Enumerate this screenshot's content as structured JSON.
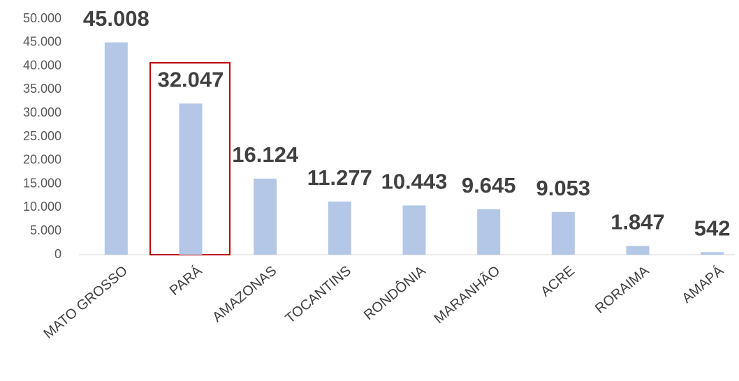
{
  "chart_data": {
    "type": "bar",
    "categories": [
      "MATO GROSSO",
      "PARÁ",
      "AMAZONAS",
      "TOCANTINS",
      "RONDÔNIA",
      "MARANHÃO",
      "ACRE",
      "RORAIMA",
      "AMAPÁ"
    ],
    "values": [
      45008,
      32047,
      16124,
      11277,
      10443,
      9645,
      9053,
      1847,
      542
    ],
    "value_labels": [
      "45.008",
      "32.047",
      "16.124",
      "11.277",
      "10.443",
      "9.645",
      "9.053",
      "1.847",
      "542"
    ],
    "color": "#b4c7e7",
    "ylim": [
      0,
      50000
    ],
    "yticks": [
      0,
      {
        "value": 5000,
        "label": "5.000"
      },
      {
        "value": 10000,
        "label": "10.000"
      },
      {
        "value": 15000,
        "label": "15.000"
      },
      {
        "value": 20000,
        "label": "20.000"
      },
      {
        "value": 25000,
        "label": "25.000"
      },
      {
        "value": 30000,
        "label": "30.000"
      },
      {
        "value": 35000,
        "label": "35.000"
      },
      {
        "value": 40000,
        "label": "40.000"
      },
      {
        "value": 45000,
        "label": "45.000"
      },
      {
        "value": 50000,
        "label": "50.000"
      }
    ],
    "grid": false
  }
}
